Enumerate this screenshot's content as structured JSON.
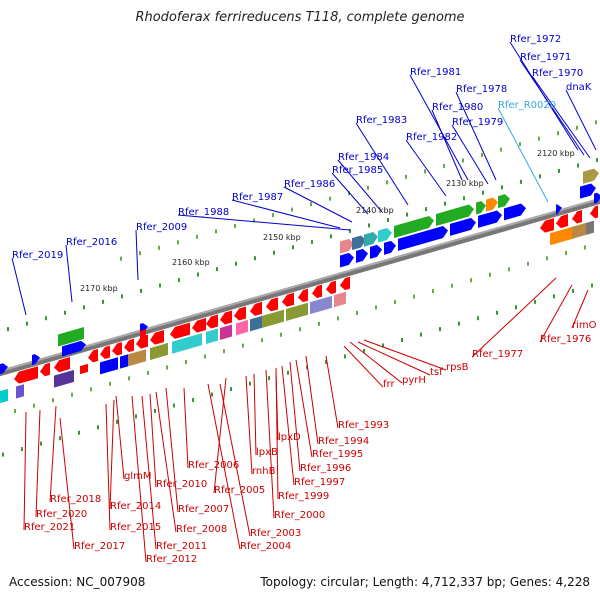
{
  "title": "Rhodoferax ferrireducens T118, complete genome",
  "accession": "Accession: NC_007908",
  "stats": "Topology: circular; Length: 4,712,337 bp; Genes: 4,228",
  "colors": {
    "plus_label": "#0000cc",
    "minus_label": "#cc0000",
    "rna_label": "#33aadd",
    "backbone": "#808080"
  },
  "kbp_ticks": [
    "2120 kbp",
    "2130 kbp",
    "2140 kbp",
    "2150 kbp",
    "2160 kbp",
    "2170 kbp"
  ],
  "plus_labels": [
    "Rfer_1972",
    "Rfer_1971",
    "Rfer_1970",
    "dnaK",
    "Rfer_1981",
    "Rfer_1978",
    "Rfer_1980",
    "Rfer_1979",
    "Rfer_1983",
    "Rfer_1982",
    "Rfer_1984",
    "Rfer_1985",
    "Rfer_1986",
    "Rfer_1987",
    "Rfer_1988",
    "Rfer_2009",
    "Rfer_2016",
    "Rfer_2019"
  ],
  "rna_labels": [
    "Rfer_R0020"
  ],
  "minus_labels": [
    "Rfer_1977",
    "Rfer_1976",
    "rimO",
    "rpsB",
    "tsf",
    "pyrH",
    "frr",
    "Rfer_1993",
    "Rfer_1994",
    "Rfer_1995",
    "Rfer_1996",
    "Rfer_1997",
    "Rfer_1999",
    "Rfer_2000",
    "lpxD",
    "lpxB",
    "rnhB",
    "Rfer_2005",
    "Rfer_2003",
    "Rfer_2004",
    "Rfer_2006",
    "Rfer_2007",
    "Rfer_2008",
    "Rfer_2010",
    "Rfer_2011",
    "Rfer_2012",
    "glmM",
    "Rfer_2014",
    "Rfer_2015",
    "Rfer_2018",
    "Rfer_2020",
    "Rfer_2021",
    "Rfer_2017"
  ]
}
